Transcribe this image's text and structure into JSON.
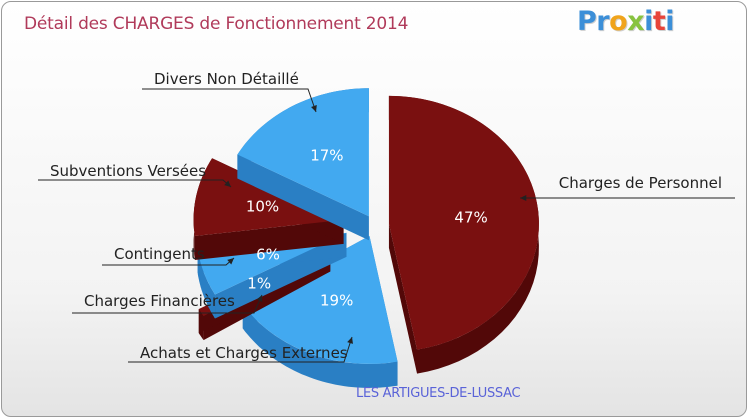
{
  "title": "Détail des CHARGES de Fonctionnement 2014",
  "subtitle": "LES ARTIGUES-DE-LUSSAC",
  "logo": {
    "letters": [
      "P",
      "r",
      "o",
      "x",
      "i",
      "t",
      "i"
    ],
    "colors": [
      "#3c8fd8",
      "#3c8fd8",
      "#f0a41c",
      "#88c33f",
      "#3c8fd8",
      "#e8443a",
      "#3c8fd8"
    ]
  },
  "colors": {
    "blue": "#42a9f0",
    "maroon": "#7a1010"
  },
  "chart_data": {
    "type": "pie",
    "title": "Détail des CHARGES de Fonctionnement 2014",
    "unit": "%",
    "slices": [
      {
        "label": "Charges de Personnel",
        "value": 47,
        "display": "47%",
        "color": "maroon"
      },
      {
        "label": "Achats et Charges Externes",
        "value": 19,
        "display": "19%",
        "color": "blue"
      },
      {
        "label": "Charges Financières",
        "value": 1,
        "display": "1%",
        "color": "maroon"
      },
      {
        "label": "Contingents",
        "value": 6,
        "display": "6%",
        "color": "blue"
      },
      {
        "label": "Subventions Versées",
        "value": 10,
        "display": "10%",
        "color": "maroon"
      },
      {
        "label": "Divers Non Détaillé",
        "value": 17,
        "display": "17%",
        "color": "blue"
      }
    ]
  }
}
